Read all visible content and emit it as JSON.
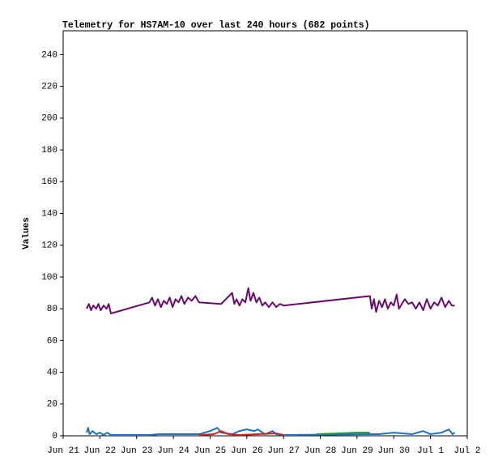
{
  "chart_data": {
    "type": "line",
    "title": "Telemetry for HS7AM-10 over last 240 hours (682 points)",
    "y_label": "Values",
    "xlim": [
      0,
      11
    ],
    "xticks": [
      {
        "value": 0,
        "label": "Jun 21"
      },
      {
        "value": 1,
        "label": "Jun 22"
      },
      {
        "value": 2,
        "label": "Jun 23"
      },
      {
        "value": 3,
        "label": "Jun 24"
      },
      {
        "value": 4,
        "label": "Jun 25"
      },
      {
        "value": 5,
        "label": "Jun 26"
      },
      {
        "value": 6,
        "label": "Jun 27"
      },
      {
        "value": 7,
        "label": "Jun 28"
      },
      {
        "value": 8,
        "label": "Jun 29"
      },
      {
        "value": 9,
        "label": "Jun 30"
      },
      {
        "value": 10,
        "label": "Jul 1"
      },
      {
        "value": 11,
        "label": "Jul 2"
      }
    ],
    "ylim": [
      0,
      255
    ],
    "yticks": [
      0,
      20,
      40,
      60,
      80,
      100,
      120,
      140,
      160,
      180,
      200,
      220,
      240
    ],
    "series": [
      {
        "color": "#1f6fc8",
        "x": [
          0.64,
          0.68,
          0.72,
          0.8,
          0.9,
          1.0,
          1.1,
          1.2,
          1.3,
          2.35,
          2.6,
          3.7,
          4.0,
          4.2,
          4.3,
          4.6,
          4.8,
          5.0,
          5.2,
          5.3,
          5.5,
          5.7,
          5.8,
          6.0,
          8.35,
          8.6,
          9.0,
          9.5,
          9.8,
          10.0,
          10.3,
          10.5,
          10.6,
          10.66
        ],
        "values": [
          2,
          5,
          1,
          3,
          1,
          2,
          0.5,
          2,
          0.5,
          0.5,
          1,
          1,
          3,
          5,
          2,
          1,
          3,
          4,
          3,
          4,
          1,
          3,
          1,
          0.5,
          1,
          1,
          2,
          1,
          3,
          1,
          2,
          4,
          1,
          2
        ]
      },
      {
        "color": "#d62020",
        "x": [
          3.7,
          4.1,
          4.3,
          4.5,
          4.8,
          5.8,
          6.0
        ],
        "values": [
          0.5,
          1,
          3,
          1,
          0.5,
          1.5,
          0.5
        ]
      },
      {
        "color": "#1a9a3a",
        "x": [
          6.9,
          7.5,
          8.0,
          8.35
        ],
        "values": [
          1,
          1.5,
          2,
          2
        ]
      },
      {
        "color": "#6a0a6e",
        "x": [
          0.64,
          0.7,
          0.76,
          0.82,
          0.9,
          0.96,
          1.02,
          1.1,
          1.18,
          1.24,
          1.3,
          2.35,
          2.42,
          2.5,
          2.58,
          2.66,
          2.74,
          2.82,
          2.9,
          2.98,
          3.06,
          3.14,
          3.22,
          3.3,
          3.4,
          3.5,
          3.6,
          3.7,
          4.3,
          4.6,
          4.66,
          4.72,
          4.8,
          4.88,
          4.96,
          5.04,
          5.1,
          5.18,
          5.26,
          5.34,
          5.42,
          5.5,
          5.6,
          5.7,
          5.8,
          5.9,
          6.0,
          8.35,
          8.4,
          8.46,
          8.52,
          8.6,
          8.68,
          8.76,
          8.84,
          8.92,
          9.0,
          9.08,
          9.14,
          9.3,
          9.4,
          9.5,
          9.6,
          9.7,
          9.8,
          9.9,
          10.0,
          10.1,
          10.2,
          10.3,
          10.4,
          10.5,
          10.58,
          10.66
        ],
        "values": [
          80,
          83,
          79,
          82,
          80,
          83,
          79,
          82,
          80,
          83,
          77,
          84,
          87,
          82,
          86,
          81,
          85,
          83,
          87,
          81,
          86,
          84,
          88,
          83,
          87,
          85,
          88,
          84,
          83,
          90,
          83,
          86,
          82,
          86,
          84,
          93,
          85,
          90,
          84,
          87,
          82,
          84,
          81,
          84,
          81,
          83,
          82,
          88,
          80,
          86,
          78,
          85,
          81,
          86,
          80,
          84,
          82,
          89,
          80,
          86,
          83,
          84,
          80,
          84,
          79,
          86,
          80,
          84,
          82,
          87,
          81,
          85,
          82,
          82
        ]
      }
    ]
  }
}
